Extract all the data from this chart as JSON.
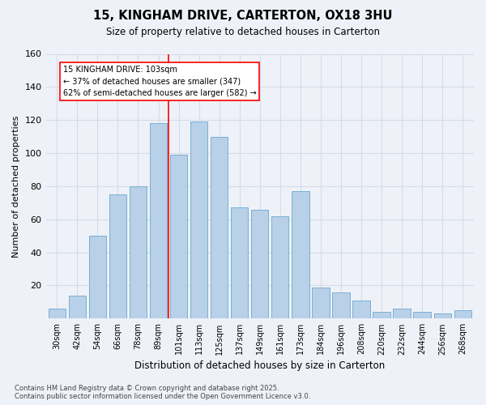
{
  "title": "15, KINGHAM DRIVE, CARTERTON, OX18 3HU",
  "subtitle": "Size of property relative to detached houses in Carterton",
  "xlabel": "Distribution of detached houses by size in Carterton",
  "ylabel": "Number of detached properties",
  "footer_line1": "Contains HM Land Registry data © Crown copyright and database right 2025.",
  "footer_line2": "Contains public sector information licensed under the Open Government Licence v3.0.",
  "categories": [
    "30sqm",
    "42sqm",
    "54sqm",
    "66sqm",
    "78sqm",
    "89sqm",
    "101sqm",
    "113sqm",
    "125sqm",
    "137sqm",
    "149sqm",
    "161sqm",
    "173sqm",
    "184sqm",
    "196sqm",
    "208sqm",
    "220sqm",
    "232sqm",
    "244sqm",
    "256sqm",
    "268sqm"
  ],
  "values": [
    6,
    14,
    50,
    75,
    80,
    118,
    99,
    119,
    110,
    67,
    66,
    62,
    77,
    19,
    16,
    11,
    4,
    6,
    4,
    3,
    5
  ],
  "bar_color": "#b8d0e8",
  "bar_edge_color": "#7aafd4",
  "grid_color": "#d4dce8",
  "background_color": "#eef2f8",
  "vline_color": "red",
  "annotation_title": "15 KINGHAM DRIVE: 103sqm",
  "annotation_line1": "← 37% of detached houses are smaller (347)",
  "annotation_line2": "62% of semi-detached houses are larger (582) →",
  "annotation_box_color": "white",
  "annotation_box_edge": "red",
  "ylim": [
    0,
    160
  ],
  "yticks": [
    0,
    20,
    40,
    60,
    80,
    100,
    120,
    140,
    160
  ],
  "vline_x": 6.0
}
